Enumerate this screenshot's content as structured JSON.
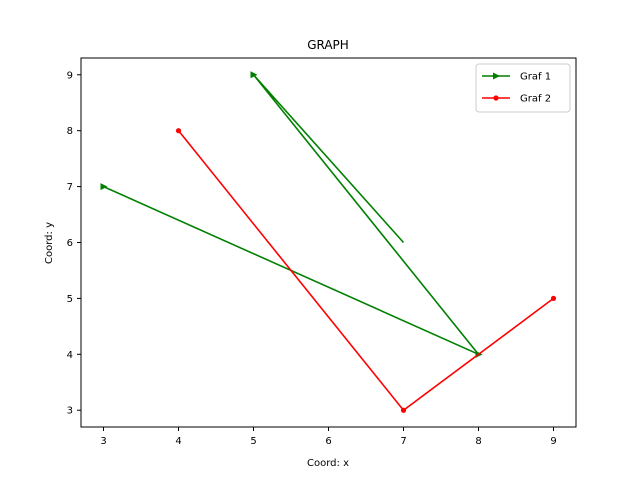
{
  "chart_data": {
    "type": "line",
    "title": "GRAPH",
    "xlabel": "Coord: x",
    "ylabel": "Coord: y",
    "xlim": [
      2.7,
      9.3
    ],
    "ylim": [
      2.7,
      9.3
    ],
    "xticks": [
      3,
      4,
      5,
      6,
      7,
      8,
      9
    ],
    "yticks": [
      3,
      4,
      5,
      6,
      7,
      8,
      9
    ],
    "grid": false,
    "legend": "top-right",
    "series": [
      {
        "name": "Graf 1",
        "color": "#008000",
        "marker": "triangle-right",
        "points": [
          [
            3,
            7
          ],
          [
            8,
            4
          ],
          [
            5,
            9
          ],
          [
            7,
            6
          ]
        ]
      },
      {
        "name": "Graf 2",
        "color": "#ff0000",
        "marker": "dot",
        "points": [
          [
            4,
            8
          ],
          [
            7,
            3
          ],
          [
            9,
            5
          ]
        ]
      }
    ]
  }
}
